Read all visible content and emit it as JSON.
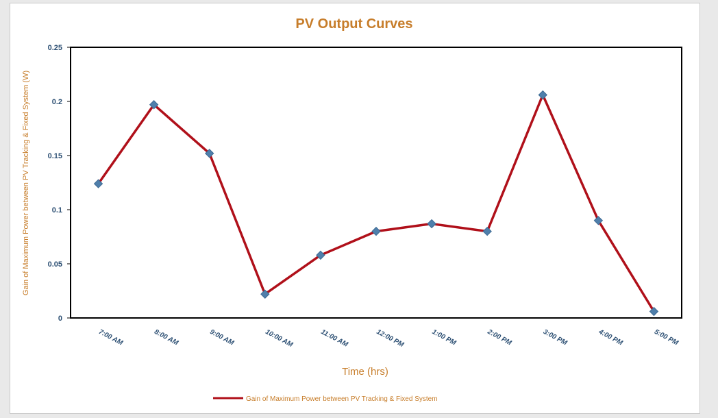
{
  "chart_data": {
    "type": "line",
    "title": "PV Output Curves",
    "xlabel": "Time (hrs)",
    "ylabel": "Gain of Maximum Power between PV Tracking & Fixed System (W)",
    "categories": [
      "7:00 AM",
      "8:00 AM",
      "9:00 AM",
      "10:00 AM",
      "11:00 AM",
      "12:00 PM",
      "1:00 PM",
      "2:00 PM",
      "3:00 PM",
      "4:00 PM",
      "5:00 PM"
    ],
    "series": [
      {
        "name": "Gain of Maximum Power between PV Tracking & Fixed System",
        "values": [
          0.124,
          0.197,
          0.152,
          0.022,
          0.058,
          0.08,
          0.087,
          0.08,
          0.206,
          0.09,
          0.006
        ]
      }
    ],
    "ylim": [
      0,
      0.25
    ],
    "yticks": [
      "0",
      "0.05",
      "0.1",
      "0.15",
      "0.2",
      "0.25"
    ],
    "legend_position": "bottom",
    "grid": false,
    "colors": {
      "line": "#b0101a",
      "marker": "#4f7fab",
      "title": "#c77d2a",
      "tick_labels": "#2c4f73"
    }
  }
}
